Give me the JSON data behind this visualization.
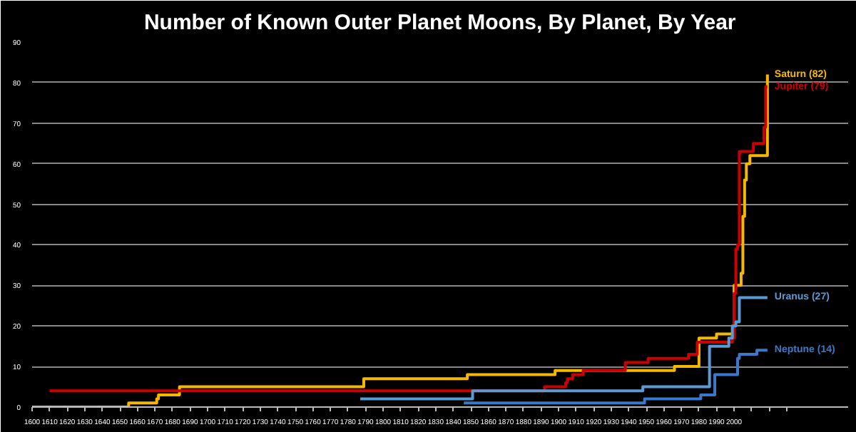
{
  "chart_data": {
    "type": "step",
    "title": "Number of Known Outer Planet Moons, By Planet, By Year",
    "xlim": [
      1600,
      2065
    ],
    "ylim": [
      0,
      90
    ],
    "xticks": [
      1600,
      1610,
      1620,
      1630,
      1640,
      1650,
      1660,
      1670,
      1680,
      1690,
      1700,
      1710,
      1720,
      1730,
      1740,
      1750,
      1760,
      1770,
      1780,
      1790,
      1800,
      1810,
      1820,
      1830,
      1840,
      1850,
      1860,
      1870,
      1880,
      1890,
      1900,
      1910,
      1920,
      1930,
      1940,
      1950,
      1960,
      1970,
      1980,
      1990,
      2000,
      {
        "value": 2010,
        "label": null
      },
      {
        "value": 2020,
        "label": null
      },
      {
        "value": 2030,
        "label": null
      }
    ],
    "yticks": [
      0,
      10,
      20,
      30,
      40,
      50,
      60,
      70,
      80,
      90
    ],
    "grid": "y",
    "series": [
      {
        "name": "Saturn (82)",
        "color": "#f5b800",
        "x": [
          1600,
          1655,
          1671,
          1672,
          1684,
          1789,
          1848,
          1898,
          1966,
          1980,
          1990,
          2000,
          2004,
          2005,
          2006,
          2007,
          2009,
          2019
        ],
        "values": [
          0,
          1,
          2,
          3,
          5,
          7,
          8,
          9,
          10,
          17,
          18,
          30,
          33,
          47,
          56,
          60,
          62,
          82
        ]
      },
      {
        "name": "Jupiter (79)",
        "color": "#cc0000",
        "x": [
          1610,
          1892,
          1904,
          1905,
          1908,
          1914,
          1938,
          1951,
          1974,
          1979,
          1999,
          2000,
          2001,
          2002,
          2003,
          2011,
          2017,
          2018,
          2019
        ],
        "values": [
          4,
          5,
          6,
          7,
          8,
          9,
          11,
          12,
          13,
          16,
          17,
          28,
          39,
          40,
          63,
          65,
          69,
          79,
          79
        ]
      },
      {
        "name": "Uranus (27)",
        "color": "#5b9bd5",
        "x": [
          1787,
          1851,
          1948,
          1986,
          1997,
          1999,
          2001,
          2003,
          2019
        ],
        "values": [
          2,
          4,
          5,
          15,
          17,
          20,
          21,
          27,
          27
        ]
      },
      {
        "name": "Neptune (14)",
        "color": "#3a78c9",
        "x": [
          1846,
          1949,
          1981,
          1989,
          2002,
          2003,
          2013,
          2019
        ],
        "values": [
          1,
          2,
          3,
          8,
          12,
          13,
          14,
          14
        ]
      }
    ]
  }
}
